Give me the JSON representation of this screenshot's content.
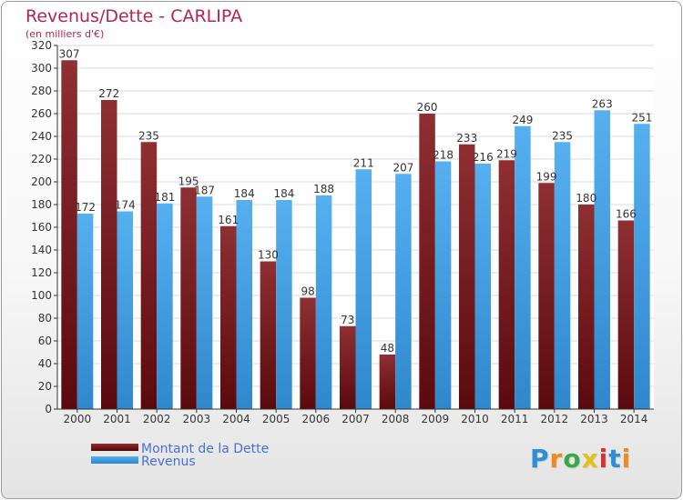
{
  "header": {
    "title": "Revenus/Dette - CARLIPA",
    "subtitle": "(en milliers d'€)"
  },
  "chart_data": {
    "type": "bar",
    "title": "Revenus/Dette - CARLIPA",
    "subtitle": "(en milliers d'€)",
    "xlabel": "",
    "ylabel": "",
    "ylim": [
      0,
      320
    ],
    "yticks": [
      0,
      20,
      40,
      60,
      80,
      100,
      120,
      140,
      160,
      180,
      200,
      220,
      240,
      260,
      280,
      300,
      320
    ],
    "grid": true,
    "legend_position": "bottom-left",
    "categories": [
      "2000",
      "2001",
      "2002",
      "2003",
      "2004",
      "2005",
      "2006",
      "2007",
      "2008",
      "2009",
      "2010",
      "2011",
      "2012",
      "2013",
      "2014"
    ],
    "series": [
      {
        "name": "Montant de la Dette",
        "color": "#7a1f24",
        "values": [
          307,
          272,
          235,
          195,
          161,
          130,
          98,
          73,
          48,
          260,
          233,
          219,
          199,
          180,
          166
        ],
        "labels": [
          "307",
          "272",
          "235",
          "195",
          "161",
          "130",
          "98",
          "73",
          "48",
          "260",
          "233",
          "219",
          "199",
          "180",
          "166"
        ]
      },
      {
        "name": "Revenus",
        "color": "#4aa3e6",
        "values": [
          172,
          174,
          181,
          187,
          184,
          184,
          188,
          211,
          207,
          218,
          216,
          249,
          235,
          263,
          251
        ],
        "labels": [
          "172",
          "174",
          "181",
          "187",
          "184",
          "184",
          "188",
          "211",
          "207",
          "218",
          "216",
          "249",
          "235",
          "263",
          "251"
        ]
      }
    ]
  },
  "legend": {
    "items": [
      {
        "label": "Montant de la Dette",
        "color": "#7a1f24"
      },
      {
        "label": "Revenus",
        "color": "#4aa3e6"
      }
    ]
  },
  "logo": {
    "letters": [
      "P",
      "r",
      "o",
      "x",
      "i",
      "t",
      "i"
    ],
    "colors": [
      "#2e8fd8",
      "#f08a1c",
      "#3aa84a",
      "#e2c21a",
      "#d9322e",
      "#2e8fd8",
      "#f08a1c"
    ]
  }
}
